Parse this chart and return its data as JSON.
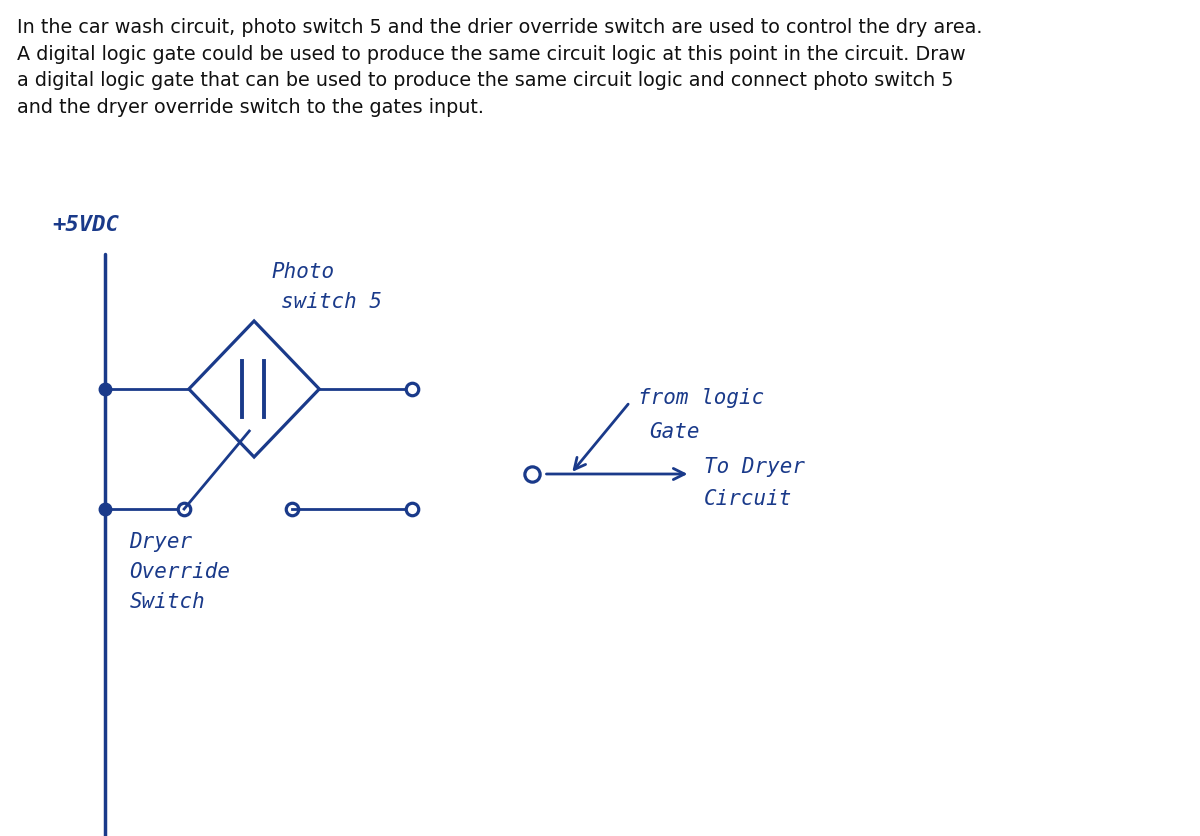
{
  "bg_color": "#ffffff",
  "ink_color": "#1a3a8a",
  "title_color": "#111111",
  "title_text": "In the car wash circuit, photo switch 5 and the drier override switch are used to control the dry area.\nA digital logic gate could be used to produce the same circuit logic at this point in the circuit. Draw\na digital logic gate that can be used to produce the same circuit logic and connect photo switch 5\nand the dryer override switch to the gates input.",
  "title_fontsize": 13.8,
  "label_vdc": "+5VDC",
  "label_photo_line1": "Photo",
  "label_photo_line2": "switch 5",
  "label_dryer_line1": "Dryer",
  "label_dryer_line2": "Override",
  "label_dryer_line3": "Switch",
  "label_from1": "from logic",
  "label_from2": "Gate",
  "label_to1": "To Dryer",
  "label_to2": "Circuit",
  "lw": 2.0
}
